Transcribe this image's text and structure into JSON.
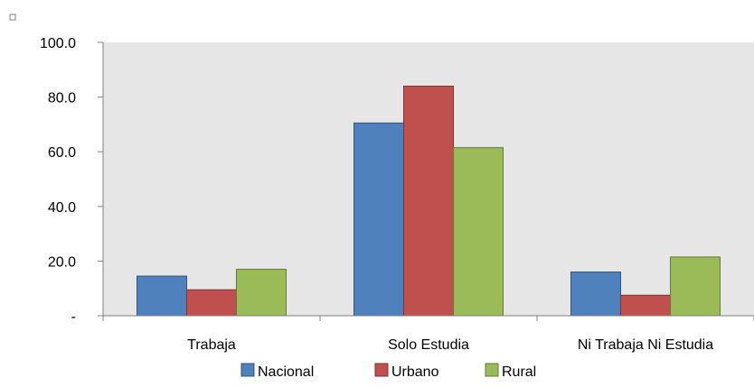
{
  "chart_data": {
    "type": "bar",
    "categories": [
      "Trabaja",
      "Solo Estudia",
      "Ni Trabaja Ni Estudia"
    ],
    "series": [
      {
        "name": "Nacional",
        "values": [
          14.5,
          70.5,
          16.0
        ],
        "color": "#4F81BD"
      },
      {
        "name": "Urbano",
        "values": [
          9.5,
          84.0,
          7.5
        ],
        "color": "#C0504D"
      },
      {
        "name": "Rural",
        "values": [
          17.0,
          61.5,
          21.5
        ],
        "color": "#9BBB59"
      }
    ],
    "ylim": [
      0,
      100
    ],
    "yticks": [
      0,
      20,
      40,
      60,
      80,
      100
    ],
    "ytick_labels": [
      "-",
      "20.0",
      "40.0",
      "60.0",
      "80.0",
      "100.0"
    ],
    "grid": false,
    "plot_background": "#E6E6E6",
    "legend_position": "bottom"
  }
}
